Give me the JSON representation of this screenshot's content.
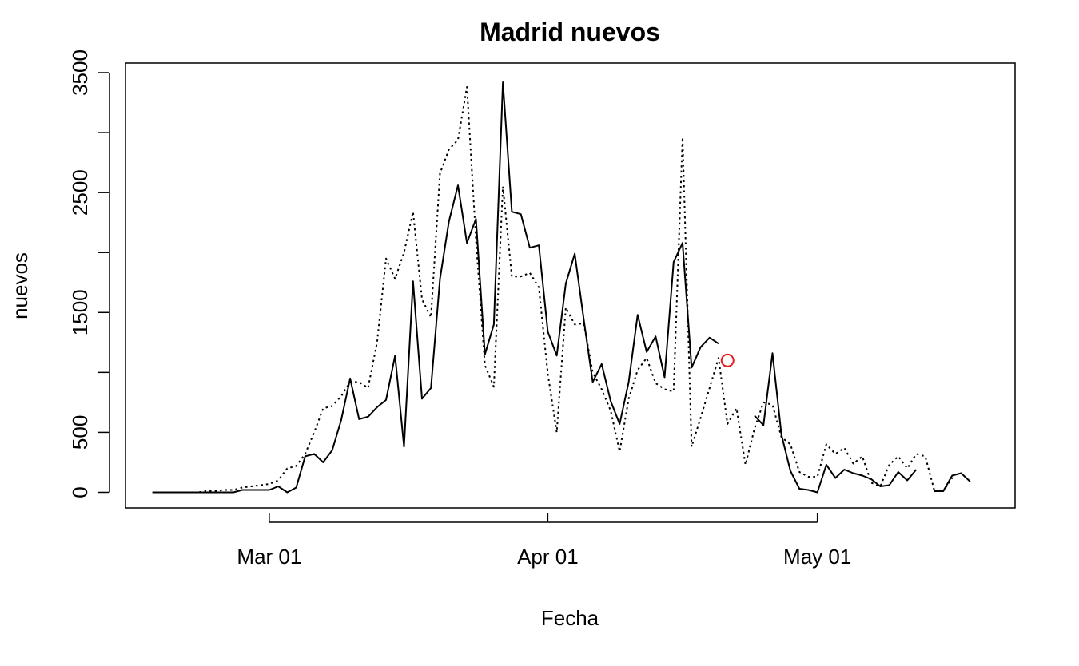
{
  "chart_data": {
    "type": "line",
    "title": "Madrid nuevos",
    "xlabel": "Fecha",
    "ylabel": "nuevos",
    "x_start": "2020-02-17",
    "x_ticks": [
      {
        "label": "Mar 01",
        "date": "2020-03-01"
      },
      {
        "label": "Apr 01",
        "date": "2020-04-01"
      },
      {
        "label": "May 01",
        "date": "2020-05-01"
      }
    ],
    "y_ticks": [
      0,
      500,
      1500,
      2500,
      3500
    ],
    "ylim": [
      -130,
      3580
    ],
    "xlim": [
      "2020-02-14",
      "2020-05-23"
    ],
    "grid": false,
    "series": [
      {
        "style": "solid",
        "color": "#000000",
        "values": [
          0,
          0,
          0,
          0,
          0,
          0,
          0,
          0,
          0,
          0,
          20,
          20,
          20,
          20,
          50,
          0,
          40,
          300,
          320,
          250,
          350,
          600,
          950,
          610,
          630,
          710,
          770,
          1140,
          380,
          1760,
          780,
          870,
          1780,
          2260,
          2560,
          2080,
          2280,
          1150,
          1400,
          3420,
          2340,
          2320,
          2040,
          2060,
          1340,
          1140,
          1740,
          1990,
          1440,
          920,
          1070,
          760,
          570,
          920,
          1480,
          1170,
          1300,
          960,
          1920,
          2080,
          1040,
          1210,
          1290,
          1240,
          null,
          null,
          null,
          640,
          560,
          1160,
          480,
          180,
          30,
          20,
          0,
          230,
          120,
          190,
          160,
          140,
          110,
          50,
          60,
          170,
          100,
          190,
          null,
          10,
          10,
          140,
          160,
          90
        ],
        "gaps": [
          [
            64,
            66
          ],
          [
            86,
            86
          ]
        ]
      },
      {
        "style": "dotted",
        "color": "#000000",
        "values": [
          0,
          0,
          0,
          0,
          0,
          0,
          10,
          10,
          20,
          20,
          40,
          50,
          60,
          70,
          100,
          200,
          220,
          320,
          500,
          700,
          720,
          800,
          920,
          920,
          870,
          1250,
          1950,
          1780,
          2000,
          2340,
          1610,
          1460,
          2660,
          2860,
          2940,
          3380,
          2110,
          1060,
          880,
          2550,
          1800,
          1800,
          1830,
          1710,
          990,
          500,
          1540,
          1400,
          1410,
          1000,
          860,
          680,
          340,
          780,
          1020,
          1120,
          910,
          860,
          840,
          2960,
          380,
          620,
          870,
          1120,
          570,
          700,
          230,
          530,
          750,
          730,
          460,
          400,
          170,
          130,
          130,
          400,
          320,
          370,
          240,
          300,
          80,
          50,
          230,
          300,
          200,
          320,
          300,
          20,
          10,
          120,
          null,
          null
        ],
        "gaps": []
      }
    ],
    "annotation": {
      "date_index": 64,
      "value": 1100,
      "marker": "circle",
      "color": "#e8191d"
    }
  }
}
